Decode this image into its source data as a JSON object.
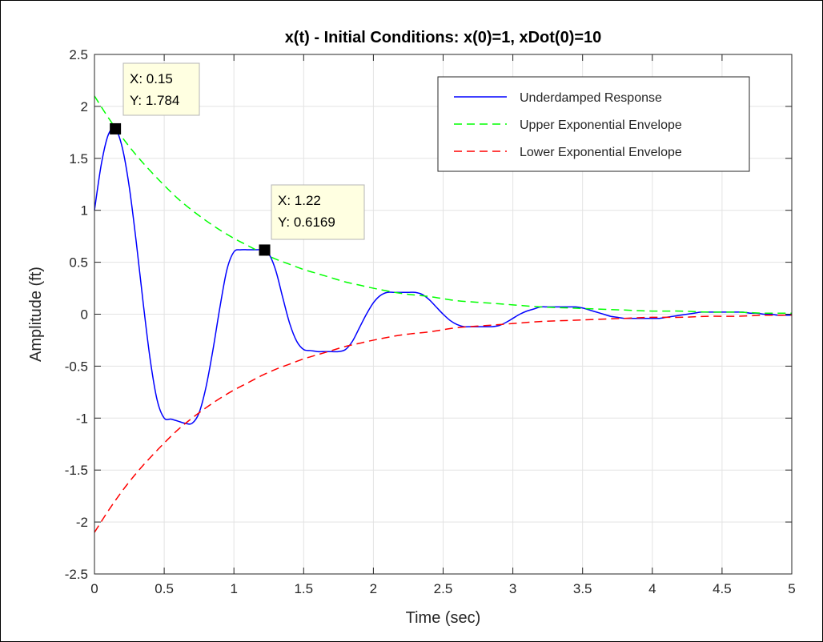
{
  "chart_data": {
    "type": "line",
    "title": "x(t) - Initial Conditions: x(0)=1, xDot(0)=10",
    "xlabel": "Time (sec)",
    "ylabel": "Amplitude (ft)",
    "xlim": [
      0,
      5
    ],
    "ylim": [
      -2.5,
      2.5
    ],
    "xticks": [
      0,
      0.5,
      1,
      1.5,
      2,
      2.5,
      3,
      3.5,
      4,
      4.5,
      5
    ],
    "yticks": [
      -2.5,
      -2,
      -1.5,
      -1,
      -0.5,
      0,
      0.5,
      1,
      1.5,
      2,
      2.5
    ],
    "xtick_labels": [
      "0",
      "0.5",
      "1",
      "1.5",
      "2",
      "2.5",
      "3",
      "3.5",
      "4",
      "4.5",
      "5"
    ],
    "ytick_labels": [
      "-2.5",
      "-2",
      "-1.5",
      "-1",
      "-0.5",
      "0",
      "0.5",
      "1",
      "1.5",
      "2",
      "2.5"
    ],
    "grid": true,
    "legend_position": "top-right",
    "series": [
      {
        "name": "Underdamped Response",
        "color": "#0000ff",
        "style": "solid",
        "x": [
          0,
          0.05,
          0.1,
          0.15,
          0.2,
          0.25,
          0.3,
          0.35,
          0.4,
          0.45,
          0.5,
          0.55,
          0.6,
          0.65,
          0.7,
          0.75,
          0.8,
          0.85,
          0.9,
          0.95,
          1.0,
          1.05,
          1.1,
          1.15,
          1.2,
          1.25,
          1.3,
          1.35,
          1.4,
          1.45,
          1.5,
          1.55,
          1.6,
          1.65,
          1.7,
          1.75,
          1.8,
          1.85,
          1.9,
          1.95,
          2.0,
          2.05,
          2.1,
          2.15,
          2.2,
          2.25,
          2.3,
          2.35,
          2.4,
          2.45,
          2.5,
          2.55,
          2.6,
          2.65,
          2.7,
          2.75,
          2.8,
          2.85,
          2.9,
          2.95,
          3.0,
          3.05,
          3.1,
          3.15,
          3.2,
          3.25,
          3.3,
          3.35,
          3.4,
          3.45,
          3.5,
          3.55,
          3.6,
          3.65,
          3.7,
          3.75,
          3.8,
          3.85,
          3.9,
          3.95,
          4.0,
          4.05,
          4.1,
          4.15,
          4.2,
          4.25,
          4.3,
          4.35,
          4.4,
          4.45,
          4.5,
          4.55,
          4.6,
          4.65,
          4.7,
          4.75,
          4.8,
          4.85,
          4.9,
          4.95,
          5.0
        ],
        "y": [
          1.0,
          1.45,
          1.73,
          1.78,
          1.6,
          1.22,
          0.69,
          0.1,
          -0.44,
          -0.83,
          -1.0,
          -1.01,
          -1.03,
          -1.05,
          -1.05,
          -0.95,
          -0.7,
          -0.34,
          0.07,
          0.43,
          0.6,
          0.62,
          0.62,
          0.62,
          0.617,
          0.58,
          0.42,
          0.16,
          -0.09,
          -0.26,
          -0.34,
          -0.35,
          -0.36,
          -0.36,
          -0.36,
          -0.36,
          -0.34,
          -0.26,
          -0.13,
          0.0,
          0.11,
          0.18,
          0.21,
          0.21,
          0.21,
          0.21,
          0.21,
          0.19,
          0.14,
          0.07,
          0.0,
          -0.06,
          -0.1,
          -0.12,
          -0.12,
          -0.12,
          -0.12,
          -0.12,
          -0.11,
          -0.08,
          -0.04,
          0.0,
          0.03,
          0.05,
          0.07,
          0.07,
          0.07,
          0.07,
          0.07,
          0.07,
          0.06,
          0.04,
          0.02,
          0.0,
          -0.02,
          -0.03,
          -0.04,
          -0.04,
          -0.04,
          -0.04,
          -0.04,
          -0.04,
          -0.03,
          -0.02,
          -0.01,
          0.0,
          0.01,
          0.02,
          0.02,
          0.02,
          0.02,
          0.02,
          0.02,
          0.02,
          0.01,
          0.01,
          0.0,
          0.0,
          -0.01,
          -0.01,
          -0.01
        ]
      },
      {
        "name": "Upper Exponential Envelope",
        "color": "#00ff00",
        "style": "dashed",
        "x": [
          0,
          0.1,
          0.2,
          0.3,
          0.4,
          0.5,
          0.6,
          0.7,
          0.8,
          0.9,
          1.0,
          1.1,
          1.2,
          1.3,
          1.4,
          1.5,
          1.6,
          1.7,
          1.8,
          1.9,
          2.0,
          2.2,
          2.4,
          2.6,
          2.8,
          3.0,
          3.2,
          3.4,
          3.6,
          3.8,
          4.0,
          4.2,
          4.4,
          4.6,
          4.8,
          5.0
        ],
        "y": [
          2.1,
          1.89,
          1.7,
          1.53,
          1.38,
          1.24,
          1.11,
          1.0,
          0.9,
          0.81,
          0.73,
          0.66,
          0.59,
          0.53,
          0.48,
          0.43,
          0.39,
          0.35,
          0.31,
          0.28,
          0.25,
          0.2,
          0.17,
          0.13,
          0.11,
          0.09,
          0.07,
          0.06,
          0.05,
          0.04,
          0.03,
          0.03,
          0.02,
          0.02,
          0.01,
          0.01
        ]
      },
      {
        "name": "Lower Exponential Envelope",
        "color": "#ff0000",
        "style": "dashed",
        "x": [
          0,
          0.1,
          0.2,
          0.3,
          0.4,
          0.5,
          0.6,
          0.7,
          0.8,
          0.9,
          1.0,
          1.1,
          1.2,
          1.3,
          1.4,
          1.5,
          1.6,
          1.7,
          1.8,
          1.9,
          2.0,
          2.2,
          2.4,
          2.6,
          2.8,
          3.0,
          3.2,
          3.4,
          3.6,
          3.8,
          4.0,
          4.2,
          4.4,
          4.6,
          4.8,
          5.0
        ],
        "y": [
          -2.1,
          -1.89,
          -1.7,
          -1.53,
          -1.38,
          -1.24,
          -1.11,
          -1.0,
          -0.9,
          -0.81,
          -0.73,
          -0.66,
          -0.59,
          -0.53,
          -0.48,
          -0.43,
          -0.39,
          -0.35,
          -0.31,
          -0.28,
          -0.25,
          -0.2,
          -0.17,
          -0.13,
          -0.11,
          -0.09,
          -0.07,
          -0.06,
          -0.05,
          -0.04,
          -0.03,
          -0.03,
          -0.02,
          -0.02,
          -0.01,
          -0.01
        ]
      }
    ],
    "datatips": [
      {
        "x": 0.15,
        "y": 1.784,
        "label_x": "X: 0.15",
        "label_y": "Y: 1.784"
      },
      {
        "x": 1.22,
        "y": 0.6169,
        "label_x": "X: 1.22",
        "label_y": "Y: 0.6169"
      }
    ]
  },
  "colors": {
    "grid": "#e3e3e3",
    "axes": "#262626",
    "datatip_fill": "#ffffe1"
  }
}
